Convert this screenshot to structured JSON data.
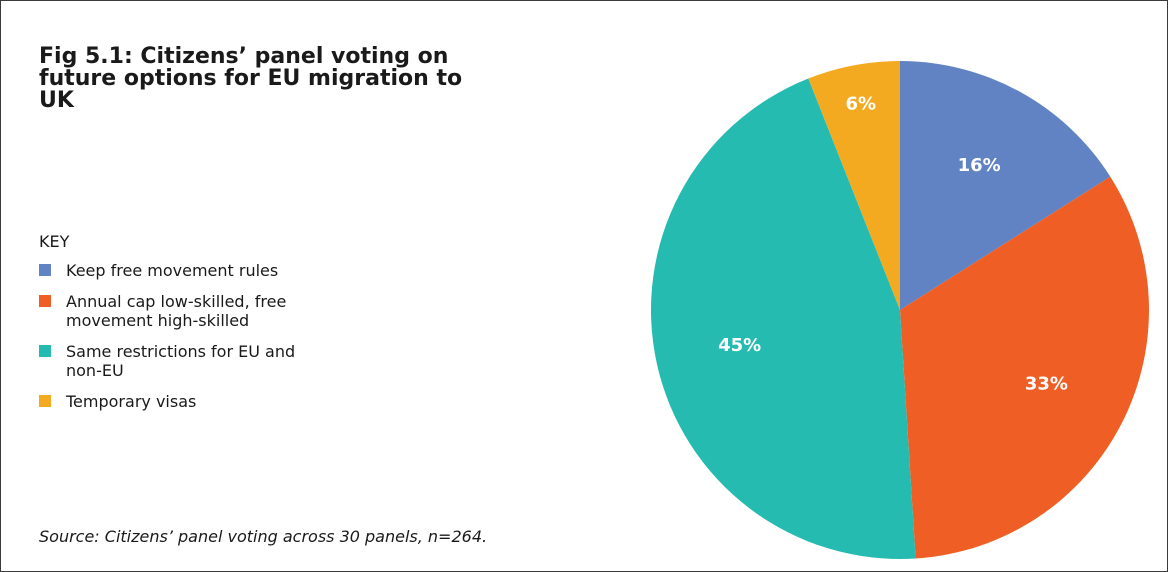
{
  "title": "Fig 5.1: Citizens’ panel voting on future options for EU migration to UK",
  "key_heading": "KEY",
  "source": "Source: Citizens’ panel voting across 30 panels, n=264.",
  "colors": {
    "frame": "#3a3a3a",
    "text": "#1a1a1a"
  },
  "chart_data": {
    "type": "pie",
    "title": "Fig 5.1: Citizens’ panel voting on future options for EU migration to UK",
    "start": "12 o'clock",
    "direction": "clockwise",
    "legend_position": "left",
    "slices": [
      {
        "label": "Keep free movement rules",
        "value": 16,
        "display": "16%",
        "color": "#6283c3"
      },
      {
        "label": "Annual cap low-skilled, free movement high-skilled",
        "value": 33,
        "display": "33%",
        "color": "#ef5f25"
      },
      {
        "label": "Same restrictions for EU and non-EU",
        "value": 45,
        "display": "45%",
        "color": "#25bbb0"
      },
      {
        "label": "Temporary visas",
        "value": 6,
        "display": "6%",
        "color": "#f3aa20"
      }
    ]
  }
}
